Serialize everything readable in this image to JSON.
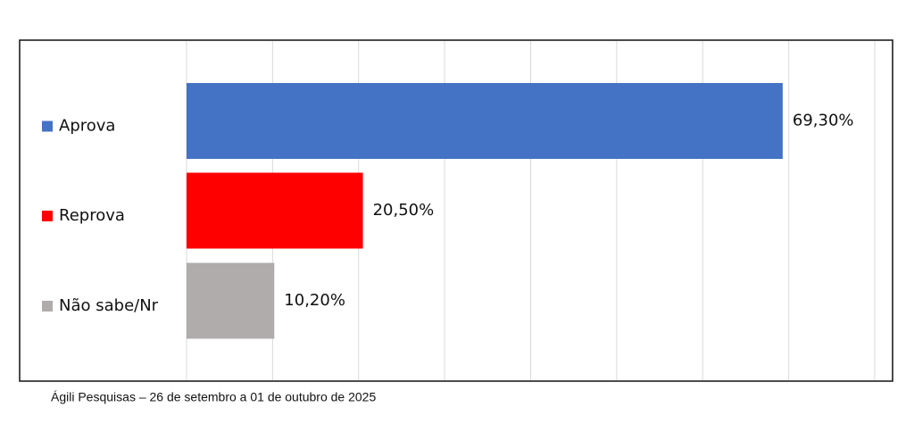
{
  "chart_data": {
    "type": "hbar",
    "categories": [
      "Aprova",
      "Reprova",
      "Não sabe/Nr"
    ],
    "values": [
      69.3,
      20.5,
      10.2
    ],
    "value_labels": [
      "69,30%",
      "20,50%",
      "10,20%"
    ],
    "colors": [
      "#4472c4",
      "#ff0000",
      "#b0acac"
    ],
    "xlim": [
      0,
      80
    ],
    "xticks": [
      0,
      10,
      20,
      30,
      40,
      50,
      60,
      70,
      80
    ],
    "grid": true,
    "source": "Ágili Pesquisas – 26 de setembro a 01 de outubro de 2025"
  }
}
